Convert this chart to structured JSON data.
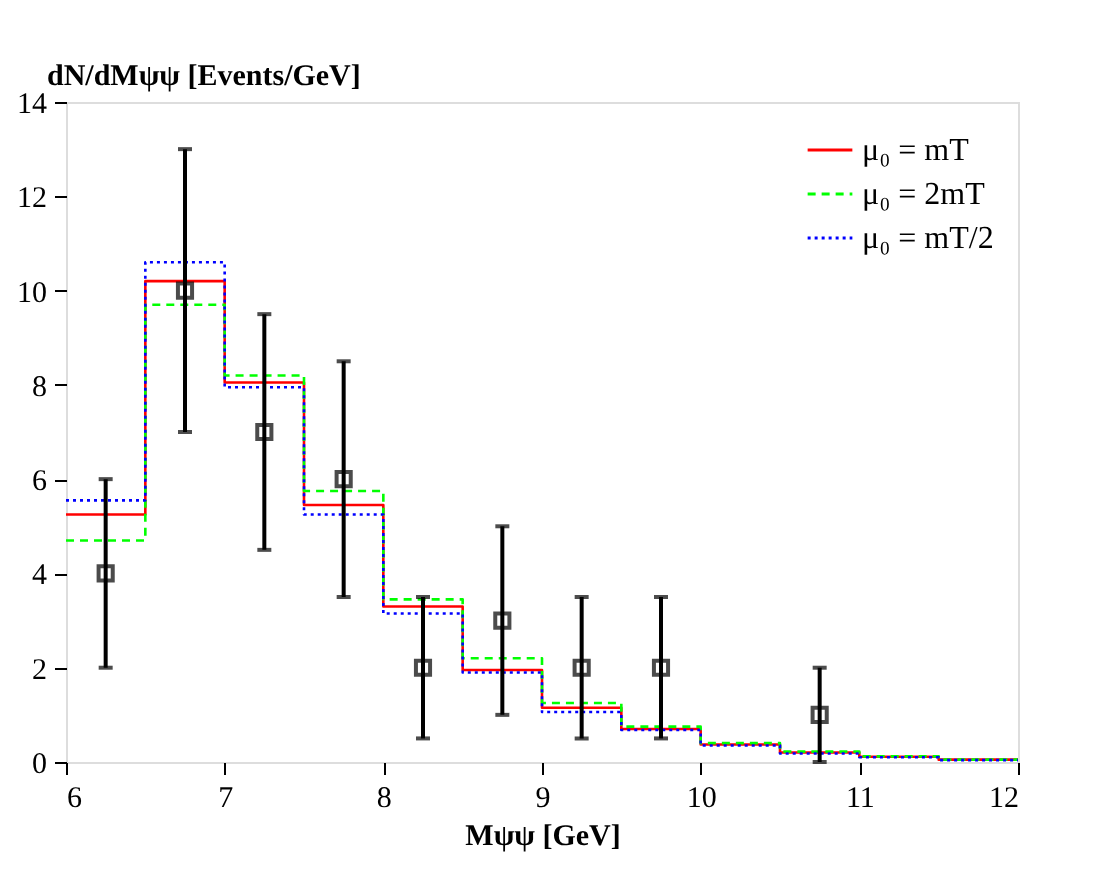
{
  "chart_data": {
    "type": "histogram",
    "xlabel": "Mψψ [GeV]",
    "ylabel": "dN/dMψψ [Events/GeV]",
    "bins": [
      6,
      6.5,
      7,
      7.5,
      8,
      8.5,
      9,
      9.5,
      10,
      10.5,
      11,
      11.5,
      12
    ],
    "series": [
      {
        "name": "μ₀ = mT",
        "color": "#ff0000",
        "line_style": "solid",
        "values": [
          5.25,
          10.2,
          8.05,
          5.45,
          3.3,
          1.95,
          1.15,
          0.7,
          0.37,
          0.2,
          0.11,
          0.05
        ]
      },
      {
        "name": "μ₀ = 2mT",
        "color": "#00ff00",
        "line_style": "dashed",
        "values": [
          4.7,
          9.7,
          8.2,
          5.75,
          3.45,
          2.2,
          1.25,
          0.75,
          0.4,
          0.22,
          0.12,
          0.05
        ]
      },
      {
        "name": "μ₀ = mT/2",
        "color": "#0000ff",
        "line_style": "dotted",
        "values": [
          5.55,
          10.6,
          7.95,
          5.25,
          3.15,
          1.9,
          1.06,
          0.68,
          0.35,
          0.18,
          0.1,
          0.04
        ]
      },
      {
        "type": "scatter",
        "color": "#000000",
        "marker": "square",
        "x": [
          6.25,
          6.75,
          7.25,
          7.75,
          8.25,
          8.75,
          9.25,
          9.75,
          10.75
        ],
        "values": [
          4,
          10,
          7,
          6,
          2,
          3,
          2,
          2,
          1
        ],
        "errors": [
          [
            2,
            6
          ],
          [
            7,
            13
          ],
          [
            4.5,
            9.5
          ],
          [
            3.5,
            8.5
          ],
          [
            0.5,
            3.5
          ],
          [
            1,
            5
          ],
          [
            0.5,
            3.5
          ],
          [
            0.5,
            3.5
          ],
          [
            0,
            2
          ]
        ]
      }
    ],
    "xlim": [
      6,
      12
    ],
    "xticks": [
      6,
      7,
      8,
      9,
      10,
      11,
      12
    ],
    "ylim": [
      0,
      14
    ],
    "yticks": [
      0,
      2,
      4,
      6,
      8,
      10,
      12,
      14
    ],
    "grid": false,
    "legend": "top right"
  }
}
